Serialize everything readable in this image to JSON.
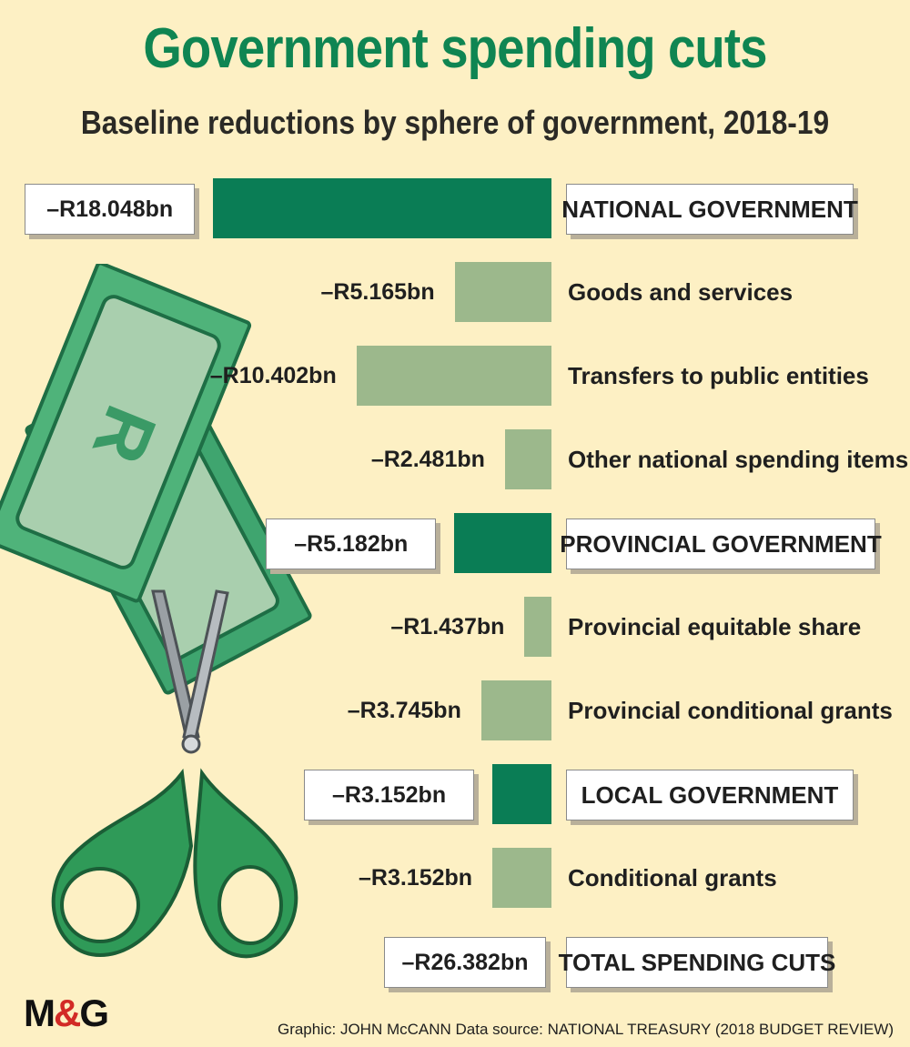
{
  "header": {
    "title": "Government spending cuts",
    "subtitle": "Baseline reductions by sphere of government, 2018-19"
  },
  "colors": {
    "major": "#0a7d55",
    "minor": "#9cb88c",
    "title": "#0f8552",
    "background": "#fdf0c4"
  },
  "chart_data": {
    "type": "bar",
    "orientation": "horizontal",
    "title": "Government spending cuts",
    "subtitle": "Baseline reductions by sphere of government, 2018-19",
    "unit": "R billion",
    "rows": [
      {
        "label": "NATIONAL GOVERNMENT",
        "value": -18.048,
        "display": "–R18.048bn",
        "level": "major"
      },
      {
        "label": "Goods and services",
        "value": -5.165,
        "display": "–R5.165bn",
        "level": "minor"
      },
      {
        "label": "Transfers to public entities",
        "value": -10.402,
        "display": "–R10.402bn",
        "level": "minor"
      },
      {
        "label": "Other national spending items",
        "value": -2.481,
        "display": "–R2.481bn",
        "level": "minor"
      },
      {
        "label": "PROVINCIAL GOVERNMENT",
        "value": -5.182,
        "display": "–R5.182bn",
        "level": "major"
      },
      {
        "label": "Provincial equitable share",
        "value": -1.437,
        "display": "–R1.437bn",
        "level": "minor"
      },
      {
        "label": "Provincial conditional grants",
        "value": -3.745,
        "display": "–R3.745bn",
        "level": "minor"
      },
      {
        "label": "LOCAL GOVERNMENT",
        "value": -3.152,
        "display": "–R3.152bn",
        "level": "major"
      },
      {
        "label": "Conditional grants",
        "value": -3.152,
        "display": "–R3.152bn",
        "level": "minor"
      }
    ],
    "total": {
      "label": "TOTAL SPENDING CUTS",
      "value": -26.382,
      "display": "–R26.382bn"
    }
  },
  "footer": {
    "logo": "M&G",
    "credit": "Graphic: JOHN McCANN  Data source: NATIONAL TREASURY (2018 BUDGET REVIEW)"
  }
}
